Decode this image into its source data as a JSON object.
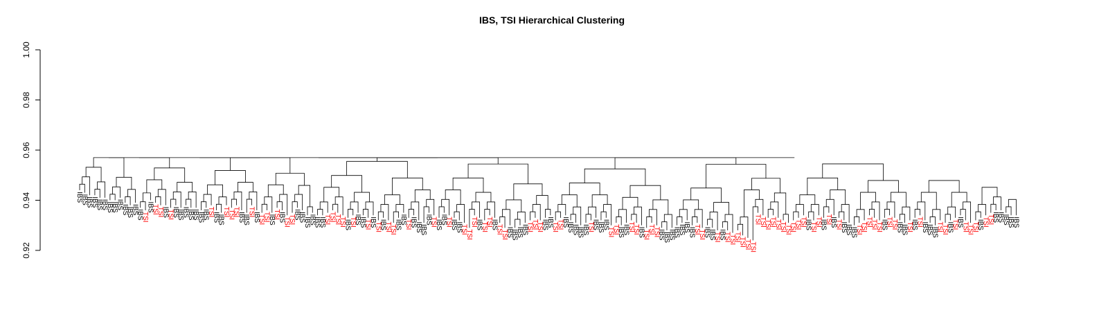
{
  "chart_data": {
    "type": "dendrogram",
    "title": "IBS, TSI Hierarchical Clustering",
    "ylabel": "",
    "xlabel": "",
    "ylim": [
      0.92,
      1.0
    ],
    "yticks": [
      0.92,
      0.94,
      0.96,
      0.98,
      1.0
    ],
    "ytick_labels": [
      "0.92",
      "0.94",
      "0.96",
      "0.98",
      "1.00"
    ],
    "grid": false,
    "legend": "none",
    "root_height": 0.957,
    "group_colors": {
      "IBS": "#000000",
      "TSI": "#ff0000"
    },
    "leaf_groups": [
      "IBS",
      "IBS",
      "IBS",
      "IBS",
      "IBS",
      "IBS",
      "IBS",
      "IBS",
      "IBS",
      "IBS",
      "IBS",
      "IBS",
      "IBS",
      "TSI",
      "IBS",
      "TSI",
      "TSI",
      "IBS",
      "TSI",
      "IBS",
      "IBS",
      "IBS",
      "IBS",
      "IBS",
      "IBS",
      "IBS",
      "TSI",
      "IBS",
      "IBS",
      "TSI",
      "TSI",
      "TSI",
      "IBS",
      "IBS",
      "TSI",
      "IBS",
      "TSI",
      "TSI",
      "IBS",
      "TSI",
      "IBS",
      "TSI",
      "TSI",
      "IBS",
      "IBS",
      "IBS",
      "IBS",
      "IBS",
      "IBS",
      "TSI",
      "TSI",
      "TSI",
      "TSI",
      "IBS",
      "TSI",
      "IBS",
      "IBS",
      "TSI",
      "IBS",
      "TSI",
      "IBS",
      "TSI",
      "TSI",
      "IBS",
      "IBS",
      "TSI",
      "IBS",
      "IBS",
      "IBS",
      "IBS",
      "TSI",
      "IBS",
      "IBS",
      "TSI",
      "IBS",
      "IBS",
      "TSI",
      "TSI",
      "TSI",
      "IBS",
      "TSI",
      "TSI",
      "IBS",
      "TSI",
      "TSI",
      "IBS",
      "IBS",
      "IBS",
      "IBS",
      "TSI",
      "TSI",
      "TSI",
      "IBS",
      "IBS",
      "TSI",
      "TSI",
      "IBS",
      "IBS",
      "IBS",
      "IBS",
      "IBS",
      "TSI",
      "IBS",
      "IBS",
      "IBS",
      "TSI",
      "TSI",
      "IBS",
      "IBS",
      "TSI",
      "TSI",
      "IBS",
      "TSI",
      "TSI",
      "TSI",
      "IBS",
      "IBS",
      "IBS",
      "IBS",
      "IBS",
      "IBS",
      "IBS",
      "TSI",
      "TSI",
      "IBS",
      "IBS",
      "TSI",
      "IBS",
      "TSI",
      "TSI",
      "TSI",
      "TSI",
      "TSI",
      "TSI",
      "TSI",
      "TSI",
      "TSI",
      "TSI",
      "TSI",
      "TSI",
      "TSI",
      "TSI",
      "TSI",
      "TSI",
      "IBS",
      "TSI",
      "TSI",
      "IBS",
      "TSI",
      "IBS",
      "TSI",
      "IBS",
      "IBS",
      "IBS",
      "TSI",
      "TSI",
      "TSI",
      "TSI",
      "TSI",
      "IBS",
      "TSI",
      "TSI",
      "IBS",
      "IBS",
      "TSI",
      "IBS",
      "TSI",
      "IBS",
      "IBS",
      "IBS",
      "TSI",
      "TSI",
      "IBS",
      "TSI",
      "IBS",
      "TSI",
      "TSI",
      "TSI",
      "IBS",
      "TSI",
      "TSI",
      "IBS",
      "IBS",
      "IBS",
      "IBS",
      "IBS",
      "IBS",
      "IBS"
    ],
    "leaf_heights": [
      0.944,
      0.943,
      0.942,
      0.942,
      0.941,
      0.941,
      0.94,
      0.94,
      0.941,
      0.939,
      0.938,
      0.939,
      0.937,
      0.936,
      0.94,
      0.939,
      0.938,
      0.938,
      0.937,
      0.938,
      0.937,
      0.938,
      0.937,
      0.937,
      0.936,
      0.937,
      0.938,
      0.936,
      0.935,
      0.938,
      0.937,
      0.938,
      0.936,
      0.935,
      0.938,
      0.936,
      0.935,
      0.936,
      0.935,
      0.937,
      0.936,
      0.934,
      0.935,
      0.937,
      0.936,
      0.934,
      0.935,
      0.934,
      0.934,
      0.935,
      0.936,
      0.935,
      0.934,
      0.933,
      0.934,
      0.935,
      0.934,
      0.933,
      0.934,
      0.932,
      0.933,
      0.932,
      0.931,
      0.933,
      0.935,
      0.933,
      0.934,
      0.932,
      0.931,
      0.935,
      0.934,
      0.933,
      0.935,
      0.934,
      0.933,
      0.932,
      0.931,
      0.929,
      0.934,
      0.933,
      0.932,
      0.934,
      0.933,
      0.931,
      0.929,
      0.93,
      0.929,
      0.93,
      0.931,
      0.932,
      0.933,
      0.932,
      0.933,
      0.934,
      0.932,
      0.933,
      0.934,
      0.932,
      0.931,
      0.93,
      0.931,
      0.932,
      0.933,
      0.932,
      0.933,
      0.93,
      0.931,
      0.93,
      0.931,
      0.932,
      0.931,
      0.93,
      0.929,
      0.931,
      0.93,
      0.929,
      0.928,
      0.929,
      0.93,
      0.931,
      0.932,
      0.93,
      0.931,
      0.929,
      0.93,
      0.929,
      0.928,
      0.929,
      0.928,
      0.927,
      0.928,
      0.926,
      0.925,
      0.924,
      0.935,
      0.934,
      0.933,
      0.934,
      0.933,
      0.932,
      0.931,
      0.932,
      0.933,
      0.934,
      0.933,
      0.932,
      0.934,
      0.933,
      0.935,
      0.934,
      0.933,
      0.932,
      0.931,
      0.93,
      0.931,
      0.932,
      0.934,
      0.933,
      0.932,
      0.933,
      0.934,
      0.933,
      0.932,
      0.931,
      0.932,
      0.933,
      0.934,
      0.932,
      0.931,
      0.93,
      0.932,
      0.931,
      0.932,
      0.933,
      0.934,
      0.932,
      0.931,
      0.932,
      0.933,
      0.934,
      0.935,
      0.936,
      0.936,
      0.935,
      0.934,
      0.934
    ]
  }
}
